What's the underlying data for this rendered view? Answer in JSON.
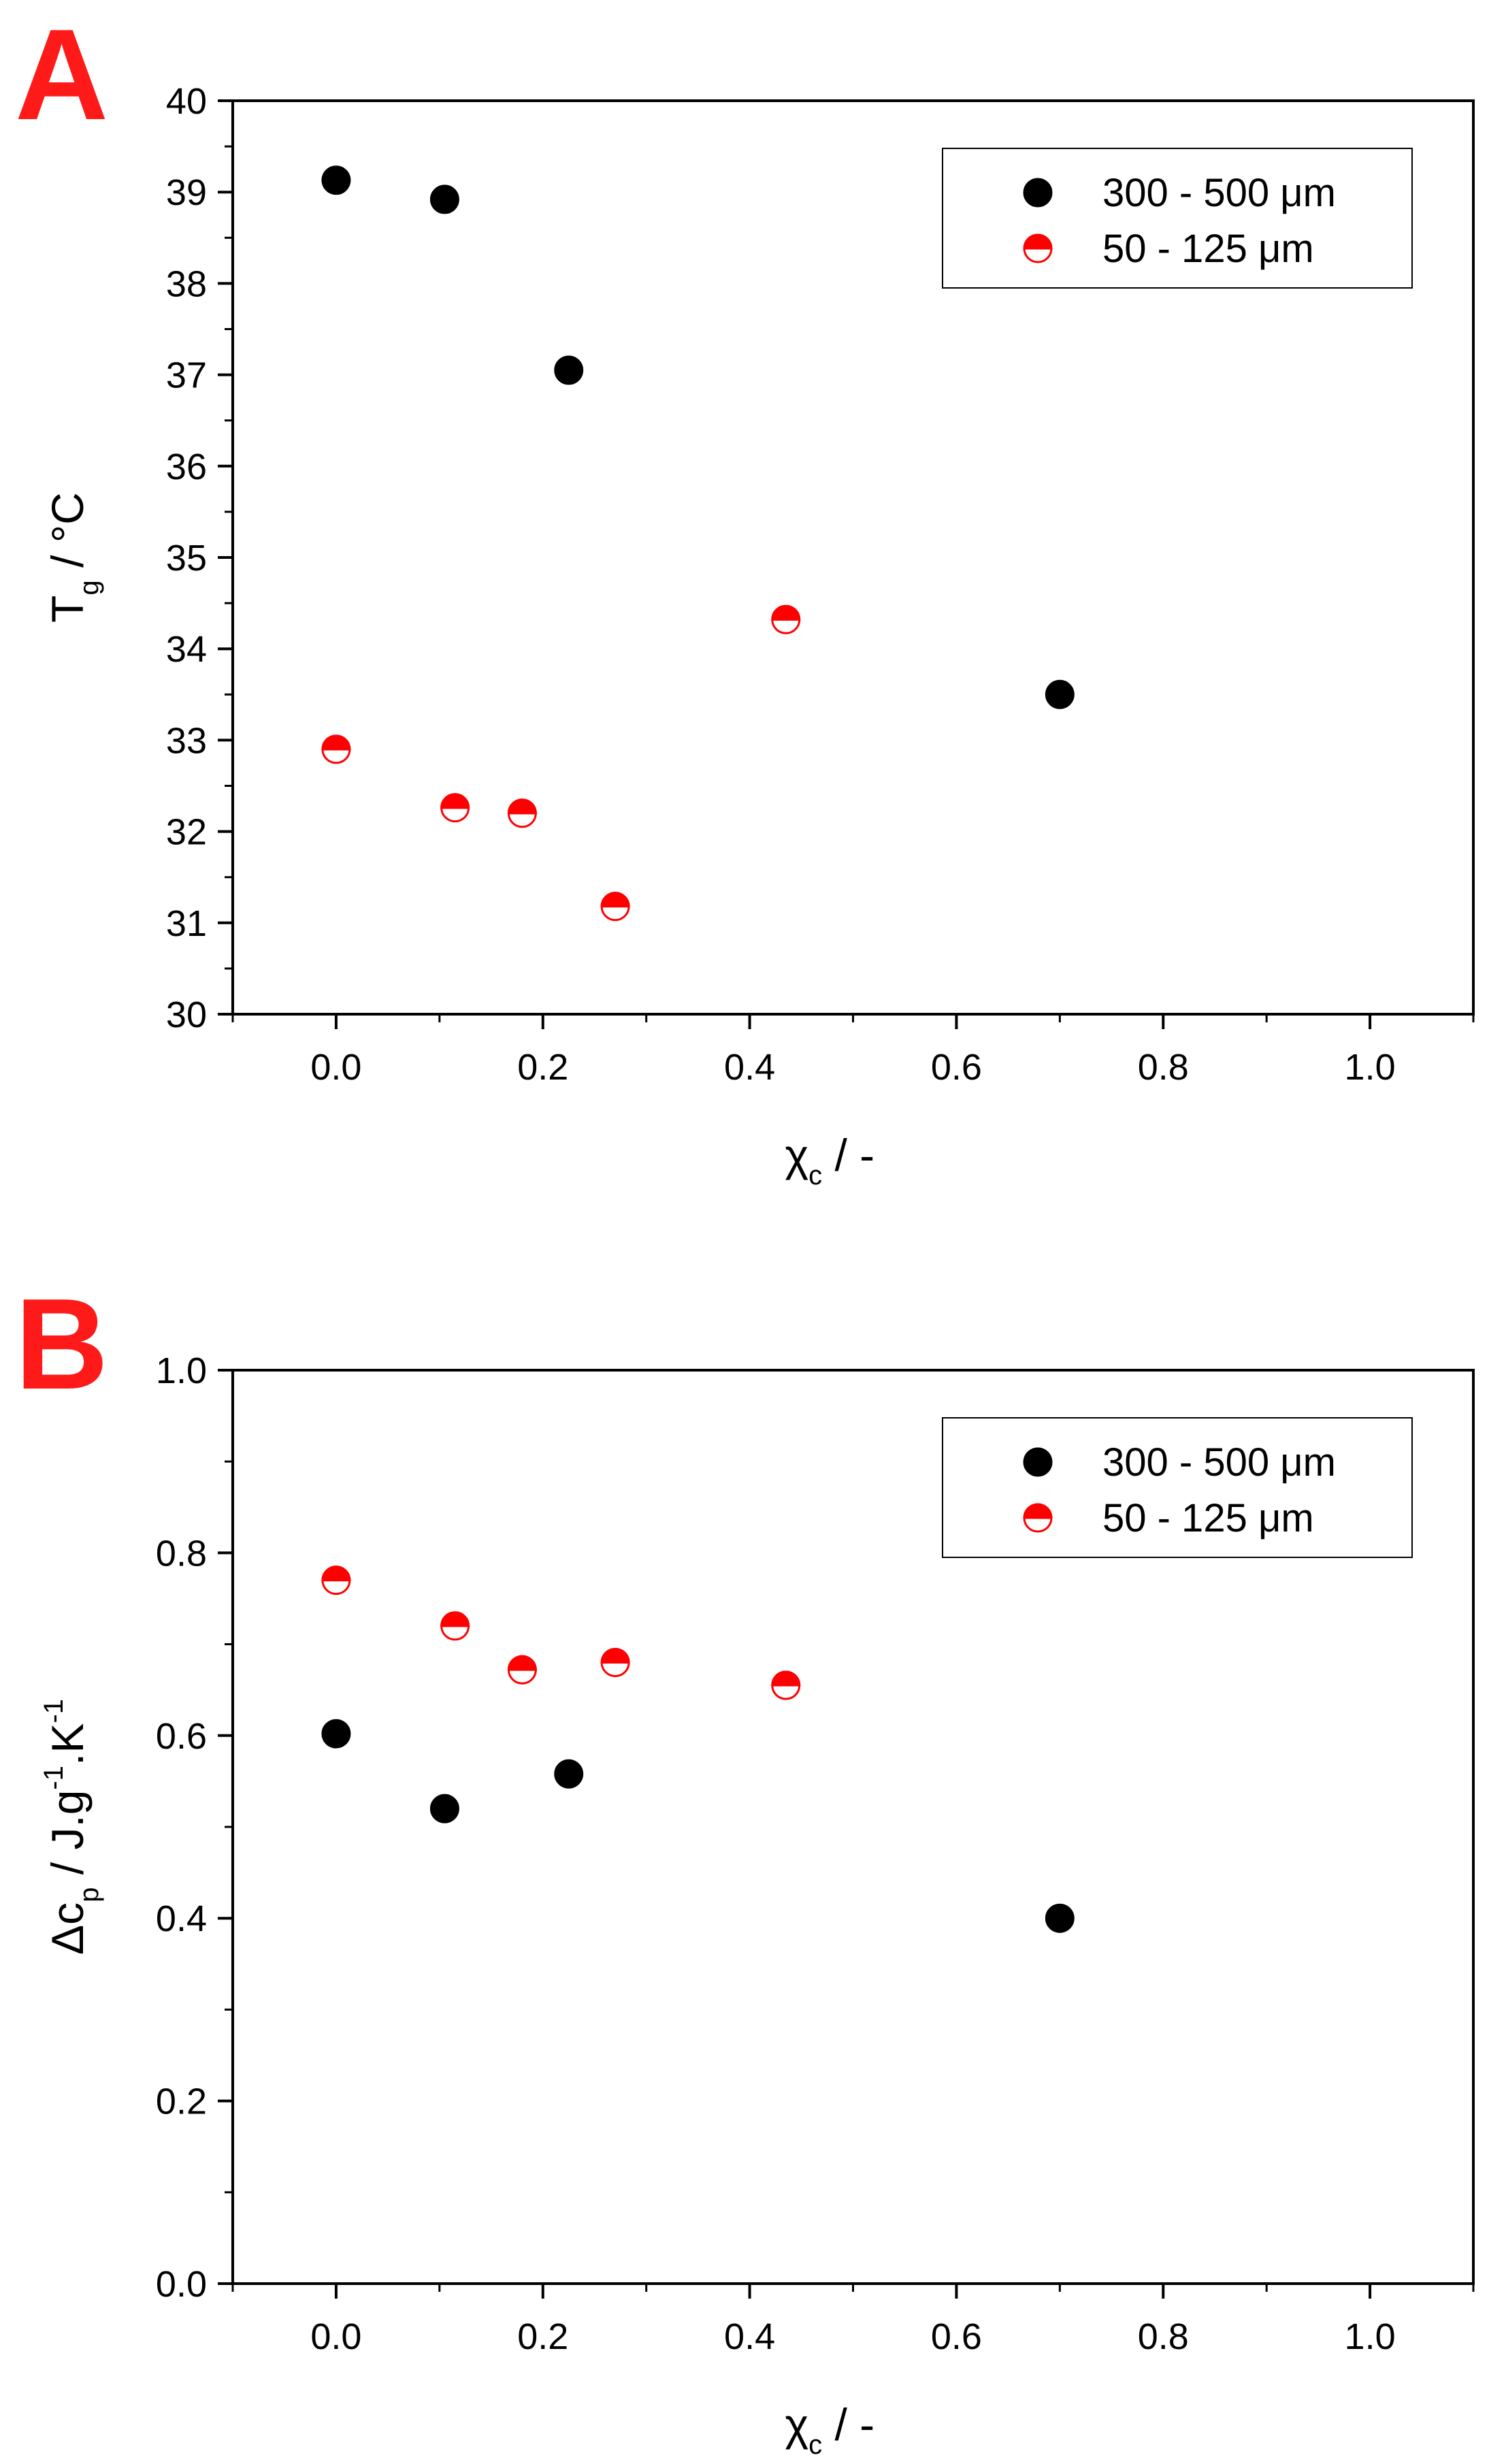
{
  "chart_data": [
    {
      "panel": "A",
      "type": "scatter",
      "xlabel": {
        "main": "χ",
        "sub": "c",
        "rest": " /   -"
      },
      "ylabel": {
        "main": "T",
        "sub": "g",
        "rest": "  /   °C"
      },
      "xlim": [
        -0.1,
        1.1
      ],
      "ylim": [
        30,
        40
      ],
      "xticks": [
        0.0,
        0.2,
        0.4,
        0.6,
        0.8,
        1.0
      ],
      "xtick_labels": [
        "0.0",
        "0.2",
        "0.4",
        "0.6",
        "0.8",
        "1.0"
      ],
      "yticks": [
        30,
        31,
        32,
        33,
        34,
        35,
        36,
        37,
        38,
        39,
        40
      ],
      "ytick_labels": [
        "30",
        "31",
        "32",
        "33",
        "34",
        "35",
        "36",
        "37",
        "38",
        "39",
        "40"
      ],
      "legend_position": "top-right",
      "series": [
        {
          "name": "300 - 500 μm",
          "marker": "filled-circle",
          "color": "#000000",
          "x": [
            0.0,
            0.105,
            0.225,
            0.7
          ],
          "y": [
            39.13,
            38.92,
            37.05,
            33.5
          ]
        },
        {
          "name": " 50 - 125 μm",
          "marker": "half-filled-circle",
          "color": "#ff0000",
          "x": [
            0.0,
            0.115,
            0.18,
            0.27,
            0.435
          ],
          "y": [
            32.9,
            32.26,
            32.2,
            31.18,
            34.32
          ]
        }
      ]
    },
    {
      "panel": "B",
      "type": "scatter",
      "xlabel": {
        "main": "χ",
        "sub": "c",
        "rest": " /   -"
      },
      "ylabel": {
        "main": "Δc",
        "sub": "p",
        "rest": "  /   J.g",
        "sup1": "-1",
        "mid": ".K",
        "sup2": "-1"
      },
      "xlim": [
        -0.1,
        1.1
      ],
      "ylim": [
        0.0,
        1.0
      ],
      "xticks": [
        0.0,
        0.2,
        0.4,
        0.6,
        0.8,
        1.0
      ],
      "xtick_labels": [
        "0.0",
        "0.2",
        "0.4",
        "0.6",
        "0.8",
        "1.0"
      ],
      "yticks": [
        0.0,
        0.2,
        0.4,
        0.6,
        0.8,
        1.0
      ],
      "ytick_labels": [
        "0.0",
        "0.2",
        "0.4",
        "0.6",
        "0.8",
        "1.0"
      ],
      "legend_position": "top-right",
      "series": [
        {
          "name": "300 - 500 μm",
          "marker": "filled-circle",
          "color": "#000000",
          "x": [
            0.0,
            0.105,
            0.225,
            0.7
          ],
          "y": [
            0.602,
            0.52,
            0.558,
            0.4
          ]
        },
        {
          "name": " 50 - 125 μm",
          "marker": "half-filled-circle",
          "color": "#ff0000",
          "x": [
            0.0,
            0.115,
            0.18,
            0.27,
            0.435
          ],
          "y": [
            0.77,
            0.72,
            0.672,
            0.68,
            0.655
          ]
        }
      ]
    }
  ]
}
